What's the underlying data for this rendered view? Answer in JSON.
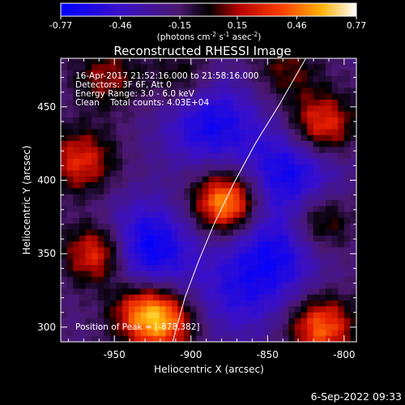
{
  "colorbar": {
    "tick_labels": [
      "-0.77",
      "-0.46",
      "-0.15",
      "0.15",
      "0.46",
      "0.77"
    ],
    "tick_values": [
      -0.77,
      -0.46,
      -0.15,
      0.15,
      0.46,
      0.77
    ],
    "range": [
      -0.77,
      0.77
    ],
    "unit_main": "(photons cm",
    "unit_exp1": "-2",
    "unit_s": " s",
    "unit_exp2": "-1",
    "unit_asec": " asec",
    "unit_exp3": "-2",
    "unit_close": ")"
  },
  "info": {
    "line1": "16-Apr-2017 21:52:16.000 to 21:58:16.000",
    "line2": "Detectors: 3F 6F, Att 0",
    "line3": "Energy Range: 3.0 - 6.0 keV",
    "line4": "Clean    Total counts: 4.03E+04",
    "peak": "Position of Peak = [-878,382]"
  },
  "timestamp": "6-Sep-2022 09:33",
  "chart_data": {
    "type": "heatmap",
    "title": "Reconstructed RHESSI Image",
    "xlabel": "Heliocentric X (arcsec)",
    "ylabel": "Heliocentric Y (arcsec)",
    "xlim": [
      -985,
      -792
    ],
    "ylim": [
      290,
      483
    ],
    "xticks": [
      -950,
      -900,
      -850,
      -800
    ],
    "xtick_labels": [
      "-950",
      "-900",
      "-850",
      "-800"
    ],
    "yticks": [
      300,
      350,
      400,
      450
    ],
    "ytick_labels": [
      "300",
      "350",
      "400",
      "450"
    ],
    "color_range": [
      -0.77,
      0.77
    ],
    "peak": [
      -878,
      382
    ],
    "sources": [
      {
        "x": -877,
        "y": 385,
        "value": 0.77
      },
      {
        "x": -960,
        "y": 350,
        "value": 0.62
      },
      {
        "x": -972,
        "y": 413,
        "value": 0.45
      },
      {
        "x": -932,
        "y": 312,
        "value": 0.5
      },
      {
        "x": -917,
        "y": 303,
        "value": 0.52
      },
      {
        "x": -815,
        "y": 437,
        "value": 0.55
      },
      {
        "x": -815,
        "y": 300,
        "value": 0.58
      },
      {
        "x": -817,
        "y": 372,
        "value": 0.4
      },
      {
        "x": -905,
        "y": 467,
        "value": 0.3
      },
      {
        "x": -955,
        "y": 470,
        "value": 0.3
      },
      {
        "x": -838,
        "y": 475,
        "value": 0.25
      },
      {
        "x": -930,
        "y": 353,
        "value": -0.6
      },
      {
        "x": -888,
        "y": 440,
        "value": -0.5
      },
      {
        "x": -835,
        "y": 405,
        "value": -0.5
      },
      {
        "x": -845,
        "y": 350,
        "value": -0.45
      },
      {
        "x": -870,
        "y": 320,
        "value": -0.3
      }
    ],
    "limb_curve": [
      [
        -912,
        290
      ],
      [
        -904,
        320
      ],
      [
        -895,
        345
      ],
      [
        -885,
        370
      ],
      [
        -872,
        398
      ],
      [
        -858,
        425
      ],
      [
        -842,
        452
      ],
      [
        -825,
        483
      ]
    ]
  }
}
